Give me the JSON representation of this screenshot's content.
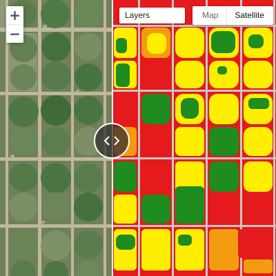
{
  "zoom": {
    "in_label": "+",
    "out_label": "−"
  },
  "layers": {
    "label": "Layers"
  },
  "map_type": {
    "options": [
      "Map",
      "Satellite"
    ],
    "selected": "Satellite"
  },
  "compare": {
    "handle_icon": "chevron-left-right-icon"
  },
  "colors": {
    "satellite_base": "#6d7e57",
    "road": "#c9c0a6",
    "index_high": "#1e8c1e",
    "index_medium": "#ffee00",
    "index_low": "#e41a1c",
    "index_mid_low": "#f39c12"
  }
}
